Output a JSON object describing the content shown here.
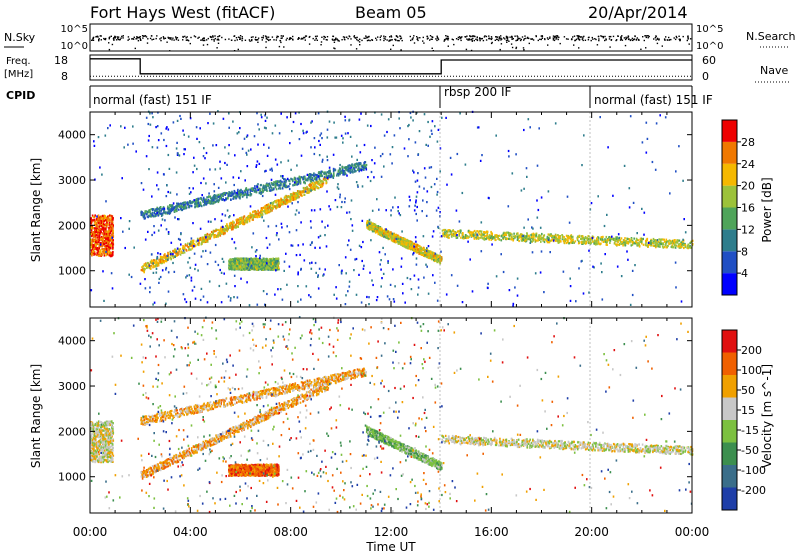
{
  "header": {
    "station": "Fort Hays West (fitACF)",
    "beam": "Beam 05",
    "date": "20/Apr/2014"
  },
  "status_panels": {
    "nsky": {
      "left_label": "N.Sky",
      "left_ticks": [
        "10^5",
        "10^0"
      ],
      "right_label": "N.Search",
      "right_ticks": [
        "10^5",
        "10^0"
      ]
    },
    "freq": {
      "left_label_line1": "Freq.",
      "left_label_line2": "[MHz]",
      "left_ticks": [
        "18",
        "8"
      ],
      "right_label": "Nave",
      "right_ticks": [
        "60",
        "0"
      ],
      "freq_steps": [
        {
          "start_h": 0,
          "end_h": 2.0,
          "value": 16.5
        },
        {
          "start_h": 2.0,
          "end_h": 14.0,
          "value": 10.5
        },
        {
          "start_h": 14.0,
          "end_h": 24.0,
          "value": 16.0
        }
      ],
      "nave_level": 9
    },
    "cpid": {
      "label": "CPID",
      "segments": [
        {
          "start_h": 0,
          "end_h": 14.0,
          "text": "normal (fast) 151 IF"
        },
        {
          "start_h": 14.0,
          "end_h": 20.0,
          "text": "rbsp 200 IF"
        },
        {
          "start_h": 20.0,
          "end_h": 24.0,
          "text": "normal (fast) 151 IF"
        }
      ]
    }
  },
  "chart_data": [
    {
      "type": "heatmap",
      "title": "",
      "xlabel": "Time UT",
      "ylabel": "Slant Range [km]",
      "x_ticks": [
        "00:00",
        "04:00",
        "08:00",
        "12:00",
        "16:00",
        "20:00",
        "00:00"
      ],
      "xlim_hours": [
        0,
        24
      ],
      "ylim": [
        200,
        4500
      ],
      "y_ticks": [
        1000,
        2000,
        3000,
        4000
      ],
      "colorbar": {
        "label": "Power [dB]",
        "ticks": [
          "4",
          "8",
          "12",
          "16",
          "20",
          "24",
          "28"
        ],
        "colors": [
          "#0000ff",
          "#204fc4",
          "#2e7d8c",
          "#4fa45a",
          "#9cc23a",
          "#f5b800",
          "#f07800",
          "#ee0000"
        ]
      },
      "features": [
        {
          "name": "early-strong",
          "t": [
            0,
            0.9
          ],
          "range": [
            1300,
            2200
          ],
          "level": 0.9
        },
        {
          "name": "rising-arc",
          "t": [
            2,
            9.5
          ],
          "range_start": 1000,
          "range_end": 3000,
          "level": 0.7
        },
        {
          "name": "upper-arc",
          "t": [
            2,
            11
          ],
          "range_start": 2200,
          "range_end": 3300,
          "level": 0.3
        },
        {
          "name": "mid-patch",
          "t": [
            5.5,
            7.5
          ],
          "range": [
            1000,
            1250
          ],
          "level": 0.5
        },
        {
          "name": "descending-band",
          "t": [
            11,
            14
          ],
          "range_start": 2000,
          "range_end": 1200,
          "level": 0.65
        },
        {
          "name": "afternoon-band",
          "t": [
            14,
            24
          ],
          "range_start": 1800,
          "range_end": 1550,
          "level": 0.6
        }
      ]
    },
    {
      "type": "heatmap",
      "title": "",
      "xlabel": "Time UT",
      "ylabel": "Slant Range [km]",
      "x_ticks": [
        "00:00",
        "04:00",
        "08:00",
        "12:00",
        "16:00",
        "20:00",
        "00:00"
      ],
      "xlim_hours": [
        0,
        24
      ],
      "ylim": [
        200,
        4500
      ],
      "y_ticks": [
        1000,
        2000,
        3000,
        4000
      ],
      "colorbar": {
        "label": "Velocity [m s^-1]",
        "ticks": [
          "200",
          "100",
          "50",
          "15",
          "-15",
          "-50",
          "-100",
          "-200"
        ],
        "colors": [
          "#1e3ea8",
          "#3a6e8a",
          "#3c8f4f",
          "#7cc040",
          "#c8c8c8",
          "#f0a000",
          "#f06000",
          "#e01010"
        ]
      }
    }
  ]
}
